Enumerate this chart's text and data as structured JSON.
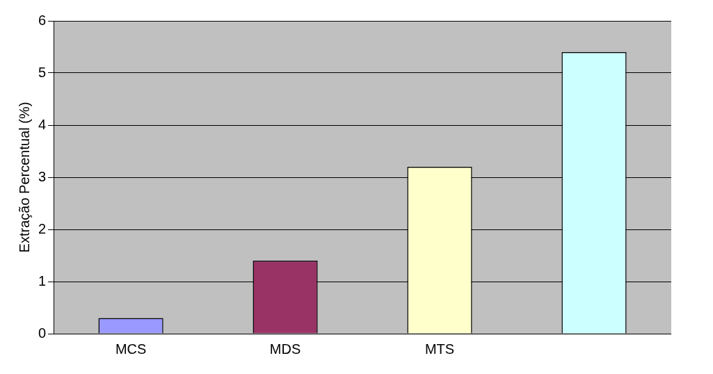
{
  "chart_data": {
    "type": "bar",
    "ylabel": "Extração Percentual (%)",
    "categories": [
      "MCS",
      "MDS",
      "MTS",
      null
    ],
    "values": [
      0.3,
      1.4,
      3.2,
      5.4
    ],
    "colors": [
      "#9999ff",
      "#993366",
      "#ffffcc",
      "#ccffff"
    ],
    "ylim": [
      0,
      6
    ],
    "yticks": [
      0,
      1,
      2,
      3,
      4,
      5,
      6
    ],
    "grid": "y",
    "legend": false
  }
}
